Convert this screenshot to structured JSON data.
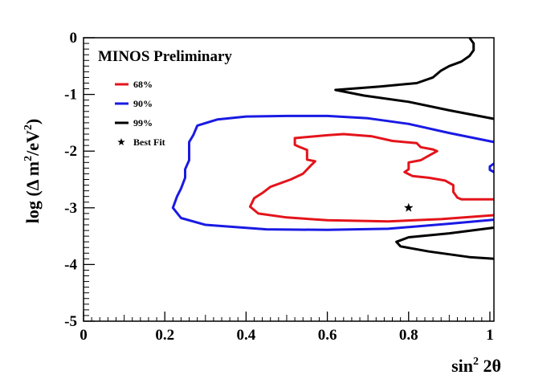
{
  "chart_data": {
    "type": "line",
    "title": "MINOS Preliminary",
    "xlabel": {
      "base": "sin",
      "sup": "2",
      "rest": " 2θ"
    },
    "ylabel": {
      "pre": "log (Δ m",
      "sup1": "2",
      "mid": "/eV",
      "sup2": "2",
      "post": ")"
    },
    "xlim": [
      0,
      1.01
    ],
    "ylim": [
      -5,
      0
    ],
    "x_ticks": [
      0,
      0.2,
      0.4,
      0.6,
      0.8,
      1
    ],
    "x_tick_labels": [
      "0",
      "0.2",
      "0.4",
      "0.6",
      "0.8",
      "1"
    ],
    "y_ticks": [
      0,
      -1,
      -2,
      -3,
      -4,
      -5
    ],
    "y_tick_labels": [
      "0",
      "-1",
      "-2",
      "-3",
      "-4",
      "-5"
    ],
    "grid": false,
    "legend_position": "top-left",
    "series": [
      {
        "name": "68%",
        "color": "#e4141b",
        "segments": [
          [
            [
              1.01,
              -2.85
            ],
            [
              0.93,
              -2.85
            ],
            [
              0.92,
              -2.82
            ],
            [
              0.91,
              -2.72
            ],
            [
              0.91,
              -2.6
            ],
            [
              0.89,
              -2.52
            ],
            [
              0.85,
              -2.47
            ],
            [
              0.81,
              -2.44
            ],
            [
              0.79,
              -2.37
            ],
            [
              0.8,
              -2.32
            ],
            [
              0.8,
              -2.26
            ],
            [
              0.8,
              -2.2
            ],
            [
              0.83,
              -2.16
            ],
            [
              0.85,
              -2.08
            ],
            [
              0.87,
              -2.0
            ],
            [
              0.86,
              -1.97
            ],
            [
              0.83,
              -1.93
            ],
            [
              0.82,
              -1.86
            ],
            [
              0.76,
              -1.82
            ],
            [
              0.71,
              -1.74
            ],
            [
              0.64,
              -1.7
            ],
            [
              0.6,
              -1.72
            ],
            [
              0.52,
              -1.77
            ],
            [
              0.52,
              -1.89
            ],
            [
              0.53,
              -1.92
            ],
            [
              0.55,
              -1.98
            ],
            [
              0.55,
              -2.15
            ],
            [
              0.57,
              -2.18
            ],
            [
              0.56,
              -2.25
            ],
            [
              0.54,
              -2.4
            ],
            [
              0.51,
              -2.5
            ],
            [
              0.46,
              -2.63
            ],
            [
              0.44,
              -2.74
            ],
            [
              0.42,
              -2.83
            ],
            [
              0.41,
              -2.98
            ],
            [
              0.43,
              -3.1
            ],
            [
              0.5,
              -3.17
            ],
            [
              0.6,
              -3.22
            ],
            [
              0.75,
              -3.24
            ],
            [
              0.88,
              -3.2
            ],
            [
              1.01,
              -3.13
            ]
          ]
        ]
      },
      {
        "name": "90%",
        "color": "#1a1ae4",
        "segments": [
          [
            [
              1.01,
              -1.84
            ],
            [
              0.9,
              -1.68
            ],
            [
              0.8,
              -1.52
            ],
            [
              0.7,
              -1.42
            ],
            [
              0.6,
              -1.38
            ],
            [
              0.5,
              -1.38
            ],
            [
              0.4,
              -1.39
            ],
            [
              0.33,
              -1.44
            ],
            [
              0.28,
              -1.55
            ],
            [
              0.27,
              -1.72
            ],
            [
              0.26,
              -1.84
            ],
            [
              0.26,
              -2.0
            ],
            [
              0.26,
              -2.16
            ],
            [
              0.25,
              -2.32
            ],
            [
              0.25,
              -2.47
            ],
            [
              0.24,
              -2.66
            ],
            [
              0.23,
              -2.8
            ],
            [
              0.22,
              -3.0
            ],
            [
              0.24,
              -3.18
            ],
            [
              0.3,
              -3.3
            ],
            [
              0.45,
              -3.38
            ],
            [
              0.6,
              -3.39
            ],
            [
              0.75,
              -3.37
            ],
            [
              0.9,
              -3.28
            ],
            [
              1.01,
              -3.21
            ]
          ],
          [
            [
              1.01,
              -2.22
            ],
            [
              1.0,
              -2.27
            ],
            [
              1.0,
              -2.33
            ],
            [
              1.01,
              -2.37
            ]
          ]
        ]
      },
      {
        "name": "99%",
        "color": "#000000",
        "segments": [
          [
            [
              0.95,
              0.0
            ],
            [
              0.96,
              -0.1
            ],
            [
              0.96,
              -0.22
            ],
            [
              0.95,
              -0.32
            ],
            [
              0.93,
              -0.42
            ],
            [
              0.9,
              -0.5
            ],
            [
              0.88,
              -0.58
            ],
            [
              0.86,
              -0.7
            ],
            [
              0.82,
              -0.8
            ],
            [
              0.73,
              -0.86
            ],
            [
              0.62,
              -0.92
            ],
            [
              0.69,
              -1.02
            ],
            [
              0.8,
              -1.13
            ],
            [
              0.9,
              -1.28
            ],
            [
              1.01,
              -1.43
            ]
          ],
          [
            [
              1.01,
              -3.35
            ],
            [
              0.9,
              -3.45
            ],
            [
              0.8,
              -3.52
            ],
            [
              0.77,
              -3.6
            ],
            [
              0.78,
              -3.68
            ],
            [
              0.85,
              -3.77
            ],
            [
              0.95,
              -3.87
            ],
            [
              1.01,
              -3.9
            ]
          ]
        ]
      }
    ],
    "best_fit": {
      "name": "Best Fit",
      "x": 0.8,
      "y": -3.0
    }
  }
}
